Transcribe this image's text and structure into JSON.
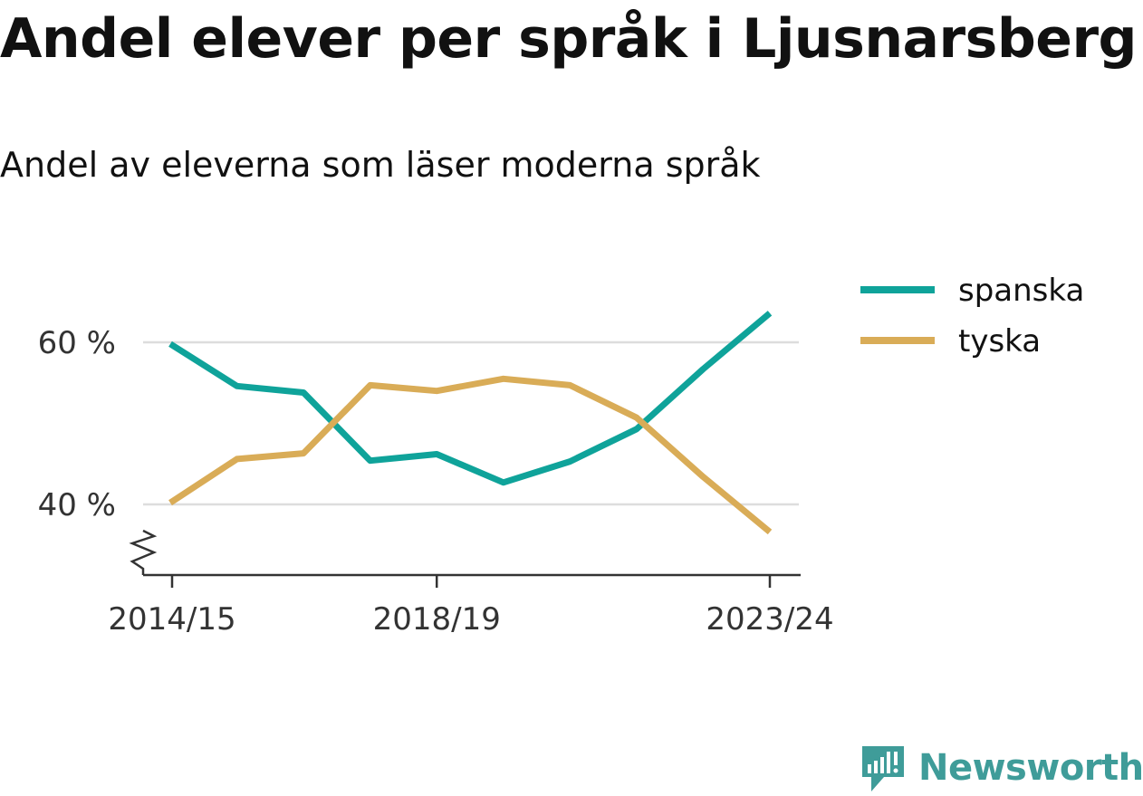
{
  "title": "Andel elever per språk i Ljusnarsberg",
  "subtitle": "Andel av eleverna som läser moderna språk",
  "brand": "Newsworthy",
  "colors": {
    "spanska": "#0fa39a",
    "tyska": "#d9ac57",
    "grid": "#dddddd",
    "axis": "#333333",
    "brand": "#3f9c99"
  },
  "chart_data": {
    "type": "line",
    "x": [
      "2014/15",
      "2015/16",
      "2016/17",
      "2017/18",
      "2018/19",
      "2019/20",
      "2020/21",
      "2021/22",
      "2022/23",
      "2023/24"
    ],
    "x_tick_labels": [
      "2014/15",
      "2018/19",
      "2023/24"
    ],
    "y_ticks": [
      40,
      60
    ],
    "y_tick_labels": [
      "40 %",
      "60 %"
    ],
    "ylim": [
      31.4,
      71
    ],
    "axis_break": true,
    "grid": true,
    "legend_position": "top-right",
    "series": [
      {
        "name": "spanska",
        "values": [
          59.8,
          54.6,
          53.8,
          45.4,
          46.2,
          42.7,
          45.3,
          49.3,
          56.7,
          63.6
        ]
      },
      {
        "name": "tyska",
        "values": [
          40.2,
          45.6,
          46.3,
          54.7,
          54.0,
          55.5,
          54.7,
          50.7,
          43.4,
          36.6
        ]
      }
    ]
  }
}
